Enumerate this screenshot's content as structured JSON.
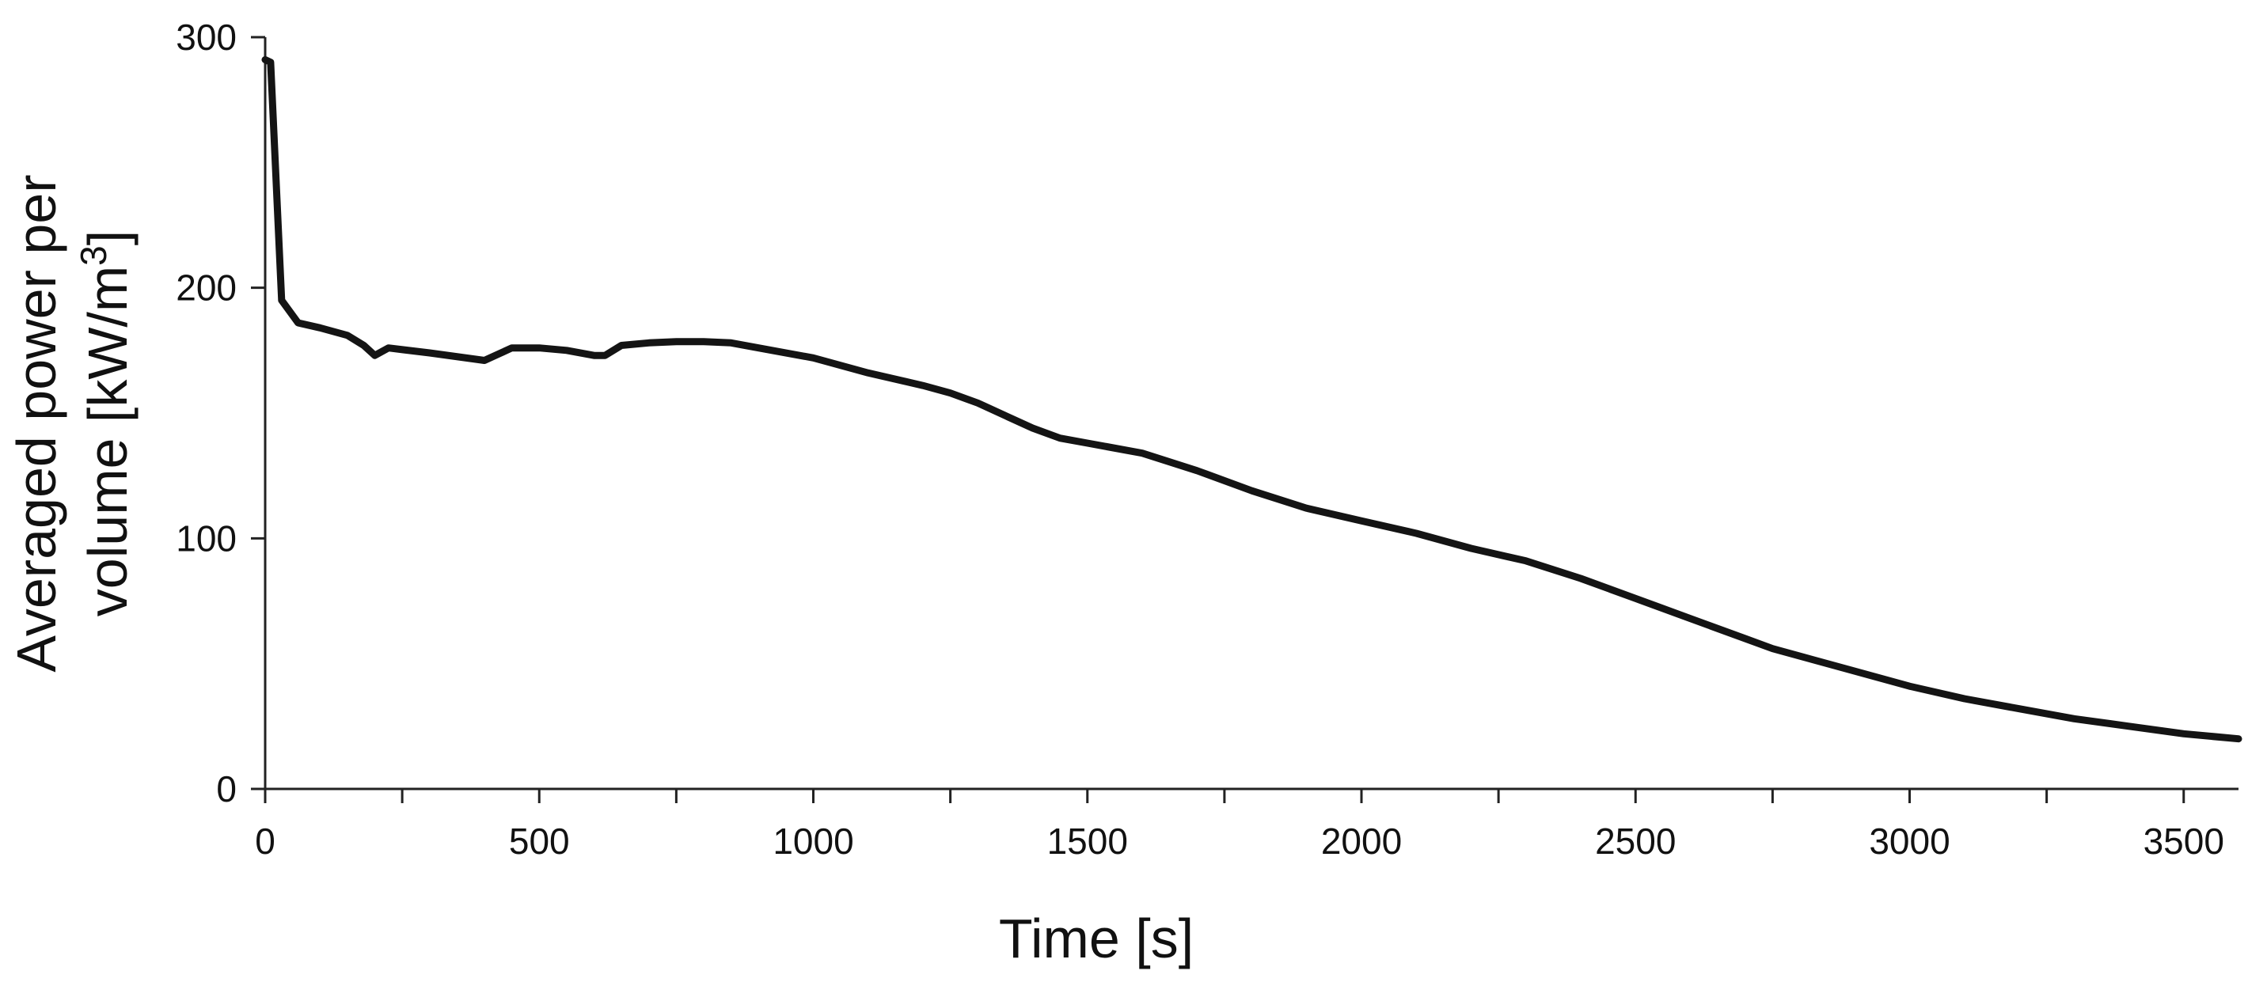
{
  "chart_data": {
    "type": "line",
    "title": "",
    "xlabel": "Time [s]",
    "ylabel": {
      "line1": "Averaged power per",
      "line2_prefix": "volume [kW/m",
      "line2_sup": "3",
      "line2_suffix": "]"
    },
    "xlim": [
      0,
      3600
    ],
    "ylim": [
      0,
      300
    ],
    "x_ticks": [
      0,
      500,
      1000,
      1500,
      2000,
      2500,
      3000,
      3500
    ],
    "x_minor_step": 250,
    "y_ticks": [
      0,
      100,
      200,
      300
    ],
    "grid": false,
    "legend": "none",
    "line_color": "#141414",
    "series": [
      {
        "x": [
          0,
          10,
          30,
          60,
          100,
          150,
          180,
          200,
          225,
          300,
          400,
          450,
          500,
          550,
          600,
          620,
          650,
          700,
          750,
          800,
          850,
          900,
          1000,
          1100,
          1200,
          1250,
          1300,
          1350,
          1400,
          1450,
          1500,
          1600,
          1700,
          1800,
          1900,
          2000,
          2100,
          2200,
          2300,
          2400,
          2500,
          2600,
          2700,
          2750,
          2800,
          2900,
          3000,
          3100,
          3200,
          3300,
          3400,
          3500,
          3600
        ],
        "y": [
          291,
          290,
          195,
          186,
          184,
          181,
          177,
          173,
          176,
          174,
          171,
          176,
          176,
          175,
          173,
          173,
          177,
          178,
          178.5,
          178.5,
          178,
          176,
          172,
          166,
          161,
          158,
          154,
          149,
          144,
          140,
          138,
          134,
          127,
          119,
          112,
          107,
          102,
          96,
          91,
          84,
          76,
          68,
          60,
          56,
          53,
          47,
          41,
          36,
          32,
          28,
          25,
          22,
          20
        ]
      }
    ]
  }
}
